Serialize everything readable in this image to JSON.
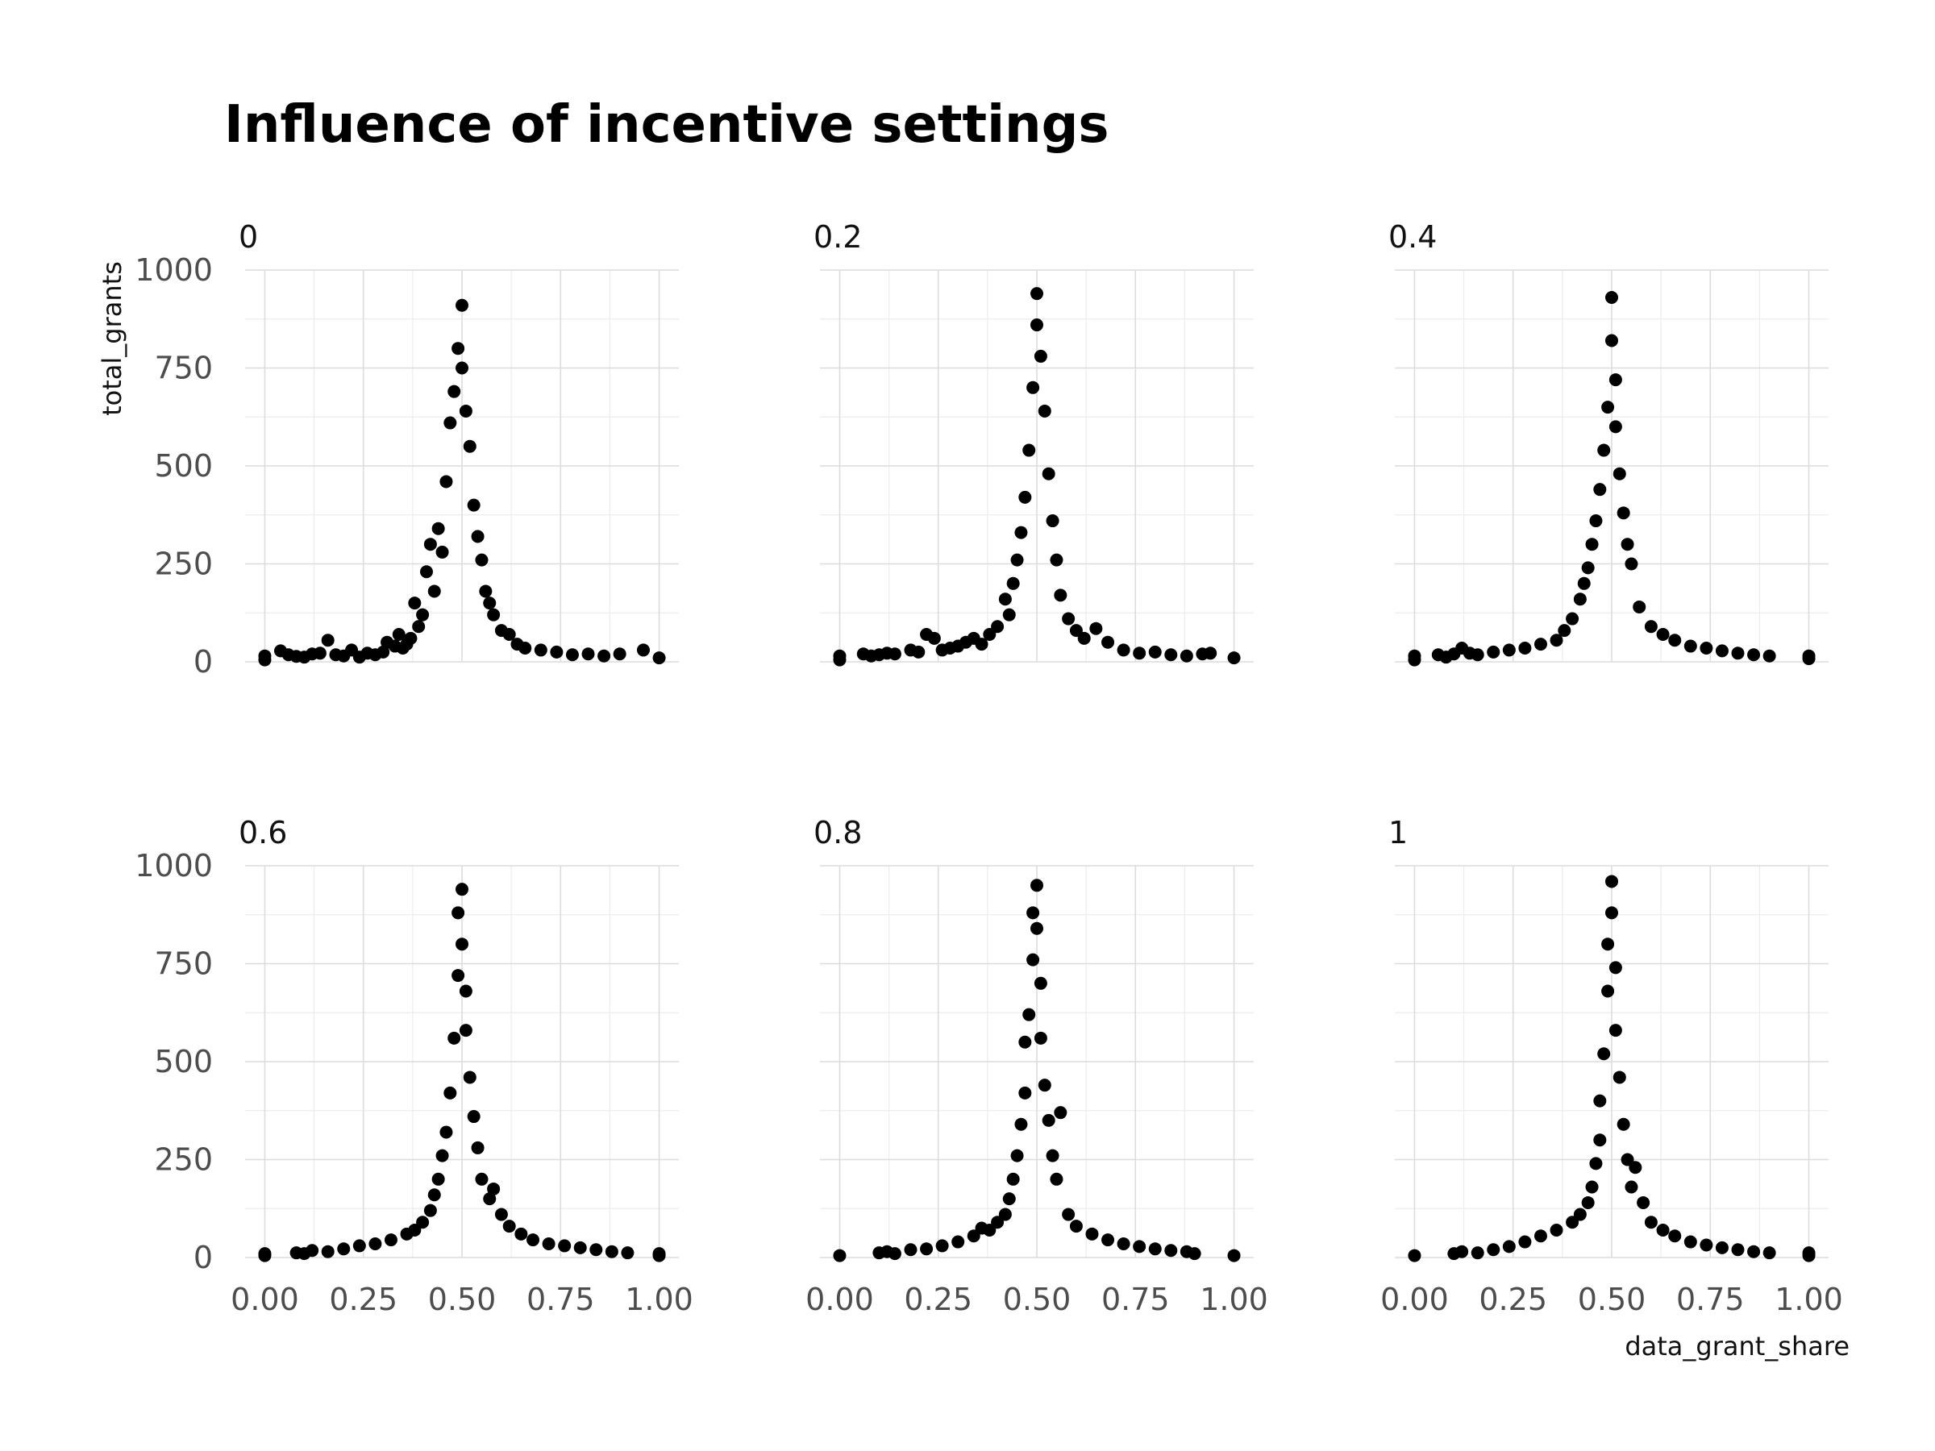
{
  "chart_data": {
    "type": "scatter",
    "title": "Influence of incentive settings",
    "xlabel": "data_grant_share",
    "ylabel": "total_grants",
    "xlim": [
      0,
      1
    ],
    "ylim": [
      0,
      1000
    ],
    "x_ticks": [
      0,
      0.25,
      0.5,
      0.75,
      1
    ],
    "x_tick_labels": [
      "0.00",
      "0.25",
      "0.50",
      "0.75",
      "1.00"
    ],
    "y_ticks": [
      0,
      250,
      500,
      750,
      1000
    ],
    "y_tick_labels": [
      "0",
      "250",
      "500",
      "750",
      "1000"
    ],
    "grid": true,
    "point_color": "#000000",
    "facets": [
      {
        "label": "0",
        "points": [
          [
            0.0,
            5
          ],
          [
            0.0,
            15
          ],
          [
            0.04,
            28
          ],
          [
            0.06,
            18
          ],
          [
            0.08,
            14
          ],
          [
            0.1,
            12
          ],
          [
            0.12,
            20
          ],
          [
            0.14,
            22
          ],
          [
            0.16,
            55
          ],
          [
            0.18,
            18
          ],
          [
            0.2,
            15
          ],
          [
            0.22,
            30
          ],
          [
            0.24,
            12
          ],
          [
            0.26,
            22
          ],
          [
            0.28,
            18
          ],
          [
            0.3,
            25
          ],
          [
            0.31,
            50
          ],
          [
            0.33,
            40
          ],
          [
            0.34,
            70
          ],
          [
            0.35,
            35
          ],
          [
            0.36,
            45
          ],
          [
            0.37,
            60
          ],
          [
            0.38,
            150
          ],
          [
            0.39,
            90
          ],
          [
            0.4,
            120
          ],
          [
            0.41,
            230
          ],
          [
            0.42,
            300
          ],
          [
            0.43,
            180
          ],
          [
            0.44,
            340
          ],
          [
            0.45,
            280
          ],
          [
            0.46,
            460
          ],
          [
            0.47,
            610
          ],
          [
            0.48,
            690
          ],
          [
            0.49,
            800
          ],
          [
            0.5,
            910
          ],
          [
            0.5,
            750
          ],
          [
            0.51,
            640
          ],
          [
            0.52,
            550
          ],
          [
            0.53,
            400
          ],
          [
            0.54,
            320
          ],
          [
            0.55,
            260
          ],
          [
            0.56,
            180
          ],
          [
            0.57,
            150
          ],
          [
            0.58,
            120
          ],
          [
            0.6,
            80
          ],
          [
            0.62,
            70
          ],
          [
            0.64,
            45
          ],
          [
            0.66,
            35
          ],
          [
            0.7,
            30
          ],
          [
            0.74,
            25
          ],
          [
            0.78,
            18
          ],
          [
            0.82,
            20
          ],
          [
            0.86,
            15
          ],
          [
            0.9,
            20
          ],
          [
            0.96,
            30
          ],
          [
            1.0,
            10
          ]
        ]
      },
      {
        "label": "0.2",
        "points": [
          [
            0.0,
            5
          ],
          [
            0.0,
            15
          ],
          [
            0.06,
            20
          ],
          [
            0.08,
            15
          ],
          [
            0.1,
            18
          ],
          [
            0.12,
            22
          ],
          [
            0.14,
            20
          ],
          [
            0.18,
            30
          ],
          [
            0.2,
            25
          ],
          [
            0.22,
            70
          ],
          [
            0.24,
            60
          ],
          [
            0.26,
            30
          ],
          [
            0.28,
            35
          ],
          [
            0.3,
            40
          ],
          [
            0.32,
            50
          ],
          [
            0.34,
            60
          ],
          [
            0.36,
            45
          ],
          [
            0.38,
            70
          ],
          [
            0.4,
            90
          ],
          [
            0.42,
            160
          ],
          [
            0.43,
            120
          ],
          [
            0.44,
            200
          ],
          [
            0.45,
            260
          ],
          [
            0.46,
            330
          ],
          [
            0.47,
            420
          ],
          [
            0.48,
            540
          ],
          [
            0.49,
            700
          ],
          [
            0.5,
            940
          ],
          [
            0.5,
            860
          ],
          [
            0.51,
            780
          ],
          [
            0.52,
            640
          ],
          [
            0.53,
            480
          ],
          [
            0.54,
            360
          ],
          [
            0.55,
            260
          ],
          [
            0.56,
            170
          ],
          [
            0.58,
            110
          ],
          [
            0.6,
            80
          ],
          [
            0.62,
            60
          ],
          [
            0.65,
            85
          ],
          [
            0.68,
            50
          ],
          [
            0.72,
            30
          ],
          [
            0.76,
            22
          ],
          [
            0.8,
            25
          ],
          [
            0.84,
            18
          ],
          [
            0.88,
            15
          ],
          [
            0.92,
            20
          ],
          [
            0.94,
            22
          ],
          [
            1.0,
            10
          ]
        ]
      },
      {
        "label": "0.4",
        "points": [
          [
            0.0,
            5
          ],
          [
            0.0,
            15
          ],
          [
            0.06,
            18
          ],
          [
            0.08,
            12
          ],
          [
            0.1,
            20
          ],
          [
            0.12,
            35
          ],
          [
            0.14,
            22
          ],
          [
            0.16,
            18
          ],
          [
            0.2,
            25
          ],
          [
            0.24,
            30
          ],
          [
            0.28,
            35
          ],
          [
            0.32,
            45
          ],
          [
            0.36,
            55
          ],
          [
            0.38,
            80
          ],
          [
            0.4,
            110
          ],
          [
            0.42,
            160
          ],
          [
            0.43,
            200
          ],
          [
            0.44,
            240
          ],
          [
            0.45,
            300
          ],
          [
            0.46,
            360
          ],
          [
            0.47,
            440
          ],
          [
            0.48,
            540
          ],
          [
            0.49,
            650
          ],
          [
            0.5,
            930
          ],
          [
            0.5,
            820
          ],
          [
            0.51,
            720
          ],
          [
            0.51,
            600
          ],
          [
            0.52,
            480
          ],
          [
            0.53,
            380
          ],
          [
            0.54,
            300
          ],
          [
            0.55,
            250
          ],
          [
            0.57,
            140
          ],
          [
            0.6,
            90
          ],
          [
            0.63,
            70
          ],
          [
            0.66,
            55
          ],
          [
            0.7,
            40
          ],
          [
            0.74,
            35
          ],
          [
            0.78,
            28
          ],
          [
            0.82,
            22
          ],
          [
            0.86,
            18
          ],
          [
            0.9,
            15
          ],
          [
            1.0,
            8
          ],
          [
            1.0,
            15
          ]
        ]
      },
      {
        "label": "0.6",
        "points": [
          [
            0.0,
            5
          ],
          [
            0.0,
            10
          ],
          [
            0.08,
            12
          ],
          [
            0.1,
            10
          ],
          [
            0.12,
            18
          ],
          [
            0.16,
            15
          ],
          [
            0.2,
            22
          ],
          [
            0.24,
            30
          ],
          [
            0.28,
            35
          ],
          [
            0.32,
            45
          ],
          [
            0.36,
            60
          ],
          [
            0.38,
            70
          ],
          [
            0.4,
            90
          ],
          [
            0.42,
            120
          ],
          [
            0.43,
            160
          ],
          [
            0.44,
            200
          ],
          [
            0.45,
            260
          ],
          [
            0.46,
            320
          ],
          [
            0.47,
            420
          ],
          [
            0.48,
            560
          ],
          [
            0.49,
            720
          ],
          [
            0.49,
            880
          ],
          [
            0.5,
            940
          ],
          [
            0.5,
            800
          ],
          [
            0.51,
            680
          ],
          [
            0.51,
            580
          ],
          [
            0.52,
            460
          ],
          [
            0.53,
            360
          ],
          [
            0.54,
            280
          ],
          [
            0.55,
            200
          ],
          [
            0.57,
            150
          ],
          [
            0.58,
            175
          ],
          [
            0.6,
            110
          ],
          [
            0.62,
            80
          ],
          [
            0.65,
            60
          ],
          [
            0.68,
            45
          ],
          [
            0.72,
            35
          ],
          [
            0.76,
            30
          ],
          [
            0.8,
            25
          ],
          [
            0.84,
            20
          ],
          [
            0.88,
            15
          ],
          [
            0.92,
            12
          ],
          [
            1.0,
            10
          ],
          [
            1.0,
            5
          ]
        ]
      },
      {
        "label": "0.8",
        "points": [
          [
            0.0,
            5
          ],
          [
            0.1,
            12
          ],
          [
            0.12,
            15
          ],
          [
            0.14,
            10
          ],
          [
            0.18,
            20
          ],
          [
            0.22,
            22
          ],
          [
            0.26,
            30
          ],
          [
            0.3,
            40
          ],
          [
            0.34,
            55
          ],
          [
            0.36,
            75
          ],
          [
            0.38,
            70
          ],
          [
            0.4,
            90
          ],
          [
            0.42,
            110
          ],
          [
            0.43,
            150
          ],
          [
            0.44,
            200
          ],
          [
            0.45,
            260
          ],
          [
            0.46,
            340
          ],
          [
            0.47,
            420
          ],
          [
            0.47,
            550
          ],
          [
            0.48,
            620
          ],
          [
            0.49,
            760
          ],
          [
            0.49,
            880
          ],
          [
            0.5,
            950
          ],
          [
            0.5,
            840
          ],
          [
            0.51,
            700
          ],
          [
            0.51,
            560
          ],
          [
            0.52,
            440
          ],
          [
            0.53,
            350
          ],
          [
            0.54,
            260
          ],
          [
            0.55,
            200
          ],
          [
            0.56,
            370
          ],
          [
            0.58,
            110
          ],
          [
            0.6,
            80
          ],
          [
            0.64,
            60
          ],
          [
            0.68,
            45
          ],
          [
            0.72,
            35
          ],
          [
            0.76,
            28
          ],
          [
            0.8,
            22
          ],
          [
            0.84,
            18
          ],
          [
            0.88,
            15
          ],
          [
            0.9,
            10
          ],
          [
            1.0,
            5
          ]
        ]
      },
      {
        "label": "1",
        "points": [
          [
            0.0,
            5
          ],
          [
            0.1,
            10
          ],
          [
            0.12,
            15
          ],
          [
            0.16,
            12
          ],
          [
            0.2,
            20
          ],
          [
            0.24,
            28
          ],
          [
            0.28,
            40
          ],
          [
            0.32,
            55
          ],
          [
            0.36,
            70
          ],
          [
            0.4,
            90
          ],
          [
            0.42,
            110
          ],
          [
            0.44,
            140
          ],
          [
            0.45,
            180
          ],
          [
            0.46,
            240
          ],
          [
            0.47,
            300
          ],
          [
            0.47,
            400
          ],
          [
            0.48,
            520
          ],
          [
            0.49,
            680
          ],
          [
            0.49,
            800
          ],
          [
            0.5,
            960
          ],
          [
            0.5,
            880
          ],
          [
            0.51,
            740
          ],
          [
            0.51,
            580
          ],
          [
            0.52,
            460
          ],
          [
            0.53,
            340
          ],
          [
            0.54,
            250
          ],
          [
            0.55,
            180
          ],
          [
            0.56,
            230
          ],
          [
            0.58,
            140
          ],
          [
            0.6,
            90
          ],
          [
            0.63,
            70
          ],
          [
            0.66,
            55
          ],
          [
            0.7,
            40
          ],
          [
            0.74,
            32
          ],
          [
            0.78,
            25
          ],
          [
            0.82,
            20
          ],
          [
            0.86,
            15
          ],
          [
            0.9,
            12
          ],
          [
            1.0,
            5
          ],
          [
            1.0,
            12
          ]
        ]
      }
    ]
  }
}
